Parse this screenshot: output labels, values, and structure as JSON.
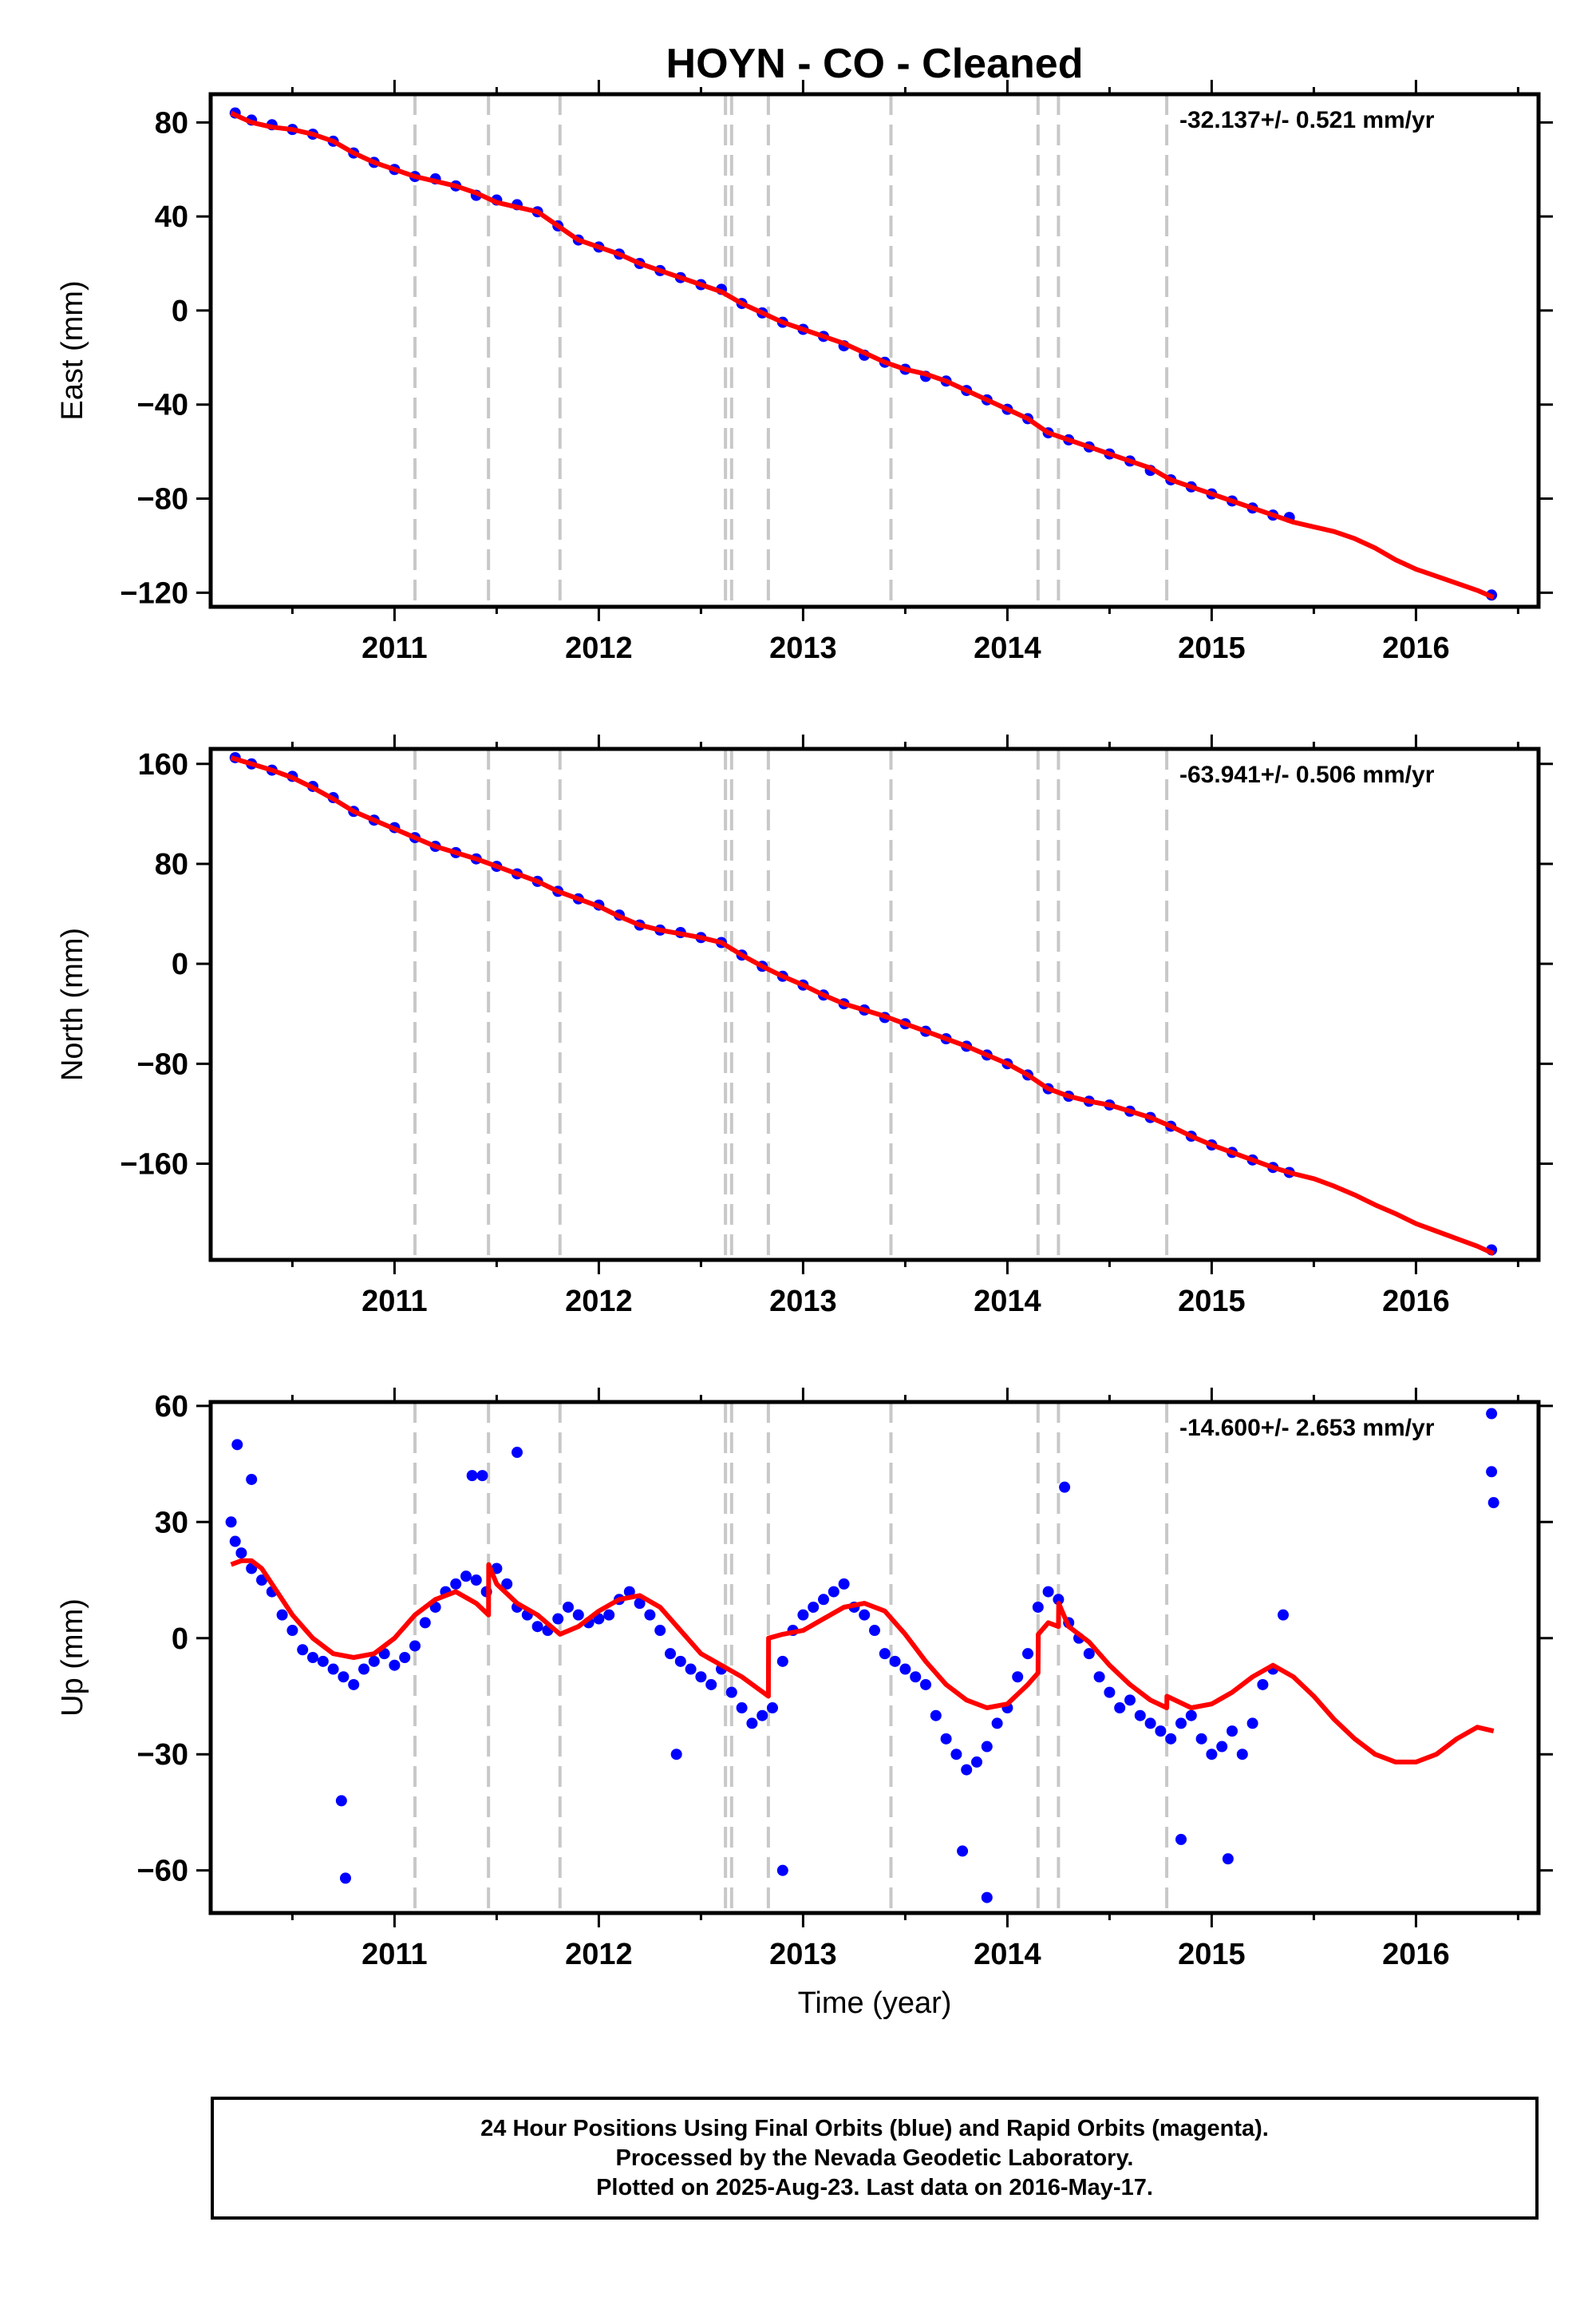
{
  "title": "HOYN  - CO - Cleaned",
  "xlabel": "Time (year)",
  "colors": {
    "final_orbits": "#0000ff",
    "model": "#ff0000",
    "steps": "#c8c8c8",
    "axes": "#000000"
  },
  "chart_data": [
    {
      "type": "scatter",
      "ylabel": "East (mm)",
      "rate_label": "-32.137+/- 0.521 mm/yr",
      "xlim": [
        2010.1,
        2016.6
      ],
      "ylim": [
        -126,
        92
      ],
      "yticks": [
        80,
        40,
        0,
        -40,
        -80,
        -120
      ],
      "yticklabels": [
        "80",
        "40",
        "0",
        "−40",
        "−80",
        "−120"
      ],
      "xticks": [
        2011,
        2012,
        2013,
        2014,
        2015,
        2016
      ],
      "xticklabels": [
        "2011",
        "2012",
        "2013",
        "2014",
        "2015",
        "2016"
      ],
      "steps": [
        2011.1,
        2011.46,
        2011.81,
        2012.62,
        2012.65,
        2012.83,
        2013.43,
        2014.15,
        2014.25,
        2014.78
      ],
      "series": [
        {
          "kind": "points",
          "color": "#0000ff",
          "x": [
            2010.22,
            2010.3,
            2010.4,
            2010.5,
            2010.6,
            2010.7,
            2010.8,
            2010.9,
            2011.0,
            2011.1,
            2011.2,
            2011.3,
            2011.4,
            2011.5,
            2011.6,
            2011.7,
            2011.8,
            2011.9,
            2012.0,
            2012.1,
            2012.2,
            2012.3,
            2012.4,
            2012.5,
            2012.6,
            2012.7,
            2012.8,
            2012.9,
            2013.0,
            2013.1,
            2013.2,
            2013.3,
            2013.4,
            2013.5,
            2013.6,
            2013.7,
            2013.8,
            2013.9,
            2014.0,
            2014.1,
            2014.2,
            2014.3,
            2014.4,
            2014.5,
            2014.6,
            2014.7,
            2014.8,
            2014.9,
            2015.0,
            2015.1,
            2015.2,
            2015.3,
            2015.38,
            2016.37
          ],
          "y": [
            84,
            81,
            79,
            77,
            75,
            72,
            67,
            63,
            60,
            57,
            56,
            53,
            49,
            47,
            45,
            42,
            36,
            30,
            27,
            24,
            20,
            17,
            14,
            11,
            9,
            3,
            -1,
            -5,
            -8,
            -11,
            -15,
            -19,
            -22,
            -25,
            -28,
            -30,
            -34,
            -38,
            -42,
            -46,
            -52,
            -55,
            -58,
            -61,
            -64,
            -68,
            -72,
            -75,
            -78,
            -81,
            -84,
            -87,
            -88,
            -121
          ]
        },
        {
          "kind": "line",
          "color": "#ff0000",
          "x": [
            2010.2,
            2010.3,
            2010.4,
            2010.5,
            2010.6,
            2010.7,
            2010.8,
            2010.9,
            2011.0,
            2011.1,
            2011.2,
            2011.3,
            2011.4,
            2011.5,
            2011.6,
            2011.7,
            2011.8,
            2011.9,
            2012.0,
            2012.1,
            2012.2,
            2012.3,
            2012.4,
            2012.5,
            2012.6,
            2012.7,
            2012.8,
            2012.9,
            2013.0,
            2013.1,
            2013.2,
            2013.3,
            2013.4,
            2013.5,
            2013.6,
            2013.7,
            2013.8,
            2013.9,
            2014.0,
            2014.1,
            2014.2,
            2014.3,
            2014.4,
            2014.5,
            2014.6,
            2014.7,
            2014.8,
            2014.9,
            2015.0,
            2015.1,
            2015.2,
            2015.3,
            2015.4,
            2015.5,
            2015.6,
            2015.7,
            2015.8,
            2015.9,
            2016.0,
            2016.1,
            2016.2,
            2016.3,
            2016.38
          ],
          "y": [
            84,
            80,
            78,
            77,
            75,
            72,
            67,
            63,
            60,
            57,
            55,
            53,
            50,
            46,
            44,
            42,
            36,
            30,
            27,
            24,
            20,
            17,
            14,
            11,
            8,
            3,
            -1,
            -5,
            -8,
            -11,
            -14,
            -18,
            -22,
            -25,
            -27,
            -30,
            -34,
            -38,
            -42,
            -46,
            -52,
            -55,
            -58,
            -61,
            -64,
            -67,
            -72,
            -75,
            -78,
            -81,
            -84,
            -87,
            -90,
            -92,
            -94,
            -97,
            -101,
            -106,
            -110,
            -113,
            -116,
            -119,
            -122
          ]
        }
      ]
    },
    {
      "type": "scatter",
      "ylabel": "North (mm)",
      "rate_label": "-63.941+/- 0.506 mm/yr",
      "xlim": [
        2010.1,
        2016.6
      ],
      "ylim": [
        -237,
        172
      ],
      "yticks": [
        160,
        80,
        0,
        -80,
        -160
      ],
      "yticklabels": [
        "160",
        "80",
        "0",
        "−80",
        "−160"
      ],
      "xticks": [
        2011,
        2012,
        2013,
        2014,
        2015,
        2016
      ],
      "xticklabels": [
        "2011",
        "2012",
        "2013",
        "2014",
        "2015",
        "2016"
      ],
      "steps": [
        2011.1,
        2011.46,
        2011.81,
        2012.62,
        2012.65,
        2012.83,
        2013.43,
        2014.15,
        2014.25,
        2014.78
      ],
      "series": [
        {
          "kind": "points",
          "color": "#0000ff",
          "x": [
            2010.22,
            2010.3,
            2010.4,
            2010.5,
            2010.6,
            2010.7,
            2010.8,
            2010.9,
            2011.0,
            2011.1,
            2011.2,
            2011.3,
            2011.4,
            2011.5,
            2011.6,
            2011.7,
            2011.8,
            2011.9,
            2012.0,
            2012.1,
            2012.2,
            2012.3,
            2012.4,
            2012.5,
            2012.6,
            2012.7,
            2012.8,
            2012.9,
            2013.0,
            2013.1,
            2013.2,
            2013.3,
            2013.4,
            2013.5,
            2013.6,
            2013.7,
            2013.8,
            2013.9,
            2014.0,
            2014.1,
            2014.2,
            2014.3,
            2014.4,
            2014.5,
            2014.6,
            2014.7,
            2014.8,
            2014.9,
            2015.0,
            2015.1,
            2015.2,
            2015.3,
            2015.38,
            2016.37
          ],
          "y": [
            165,
            160,
            155,
            150,
            142,
            133,
            122,
            115,
            109,
            101,
            94,
            89,
            84,
            78,
            72,
            66,
            58,
            52,
            47,
            39,
            31,
            27,
            25,
            21,
            17,
            7,
            -2,
            -10,
            -17,
            -25,
            -32,
            -37,
            -43,
            -48,
            -54,
            -60,
            -66,
            -73,
            -80,
            -89,
            -100,
            -106,
            -110,
            -113,
            -118,
            -123,
            -130,
            -138,
            -145,
            -151,
            -157,
            -163,
            -167,
            -229
          ]
        },
        {
          "kind": "line",
          "color": "#ff0000",
          "x": [
            2010.2,
            2010.3,
            2010.4,
            2010.5,
            2010.6,
            2010.7,
            2010.8,
            2010.9,
            2011.0,
            2011.1,
            2011.2,
            2011.3,
            2011.4,
            2011.5,
            2011.6,
            2011.7,
            2011.8,
            2011.9,
            2012.0,
            2012.1,
            2012.2,
            2012.3,
            2012.4,
            2012.5,
            2012.6,
            2012.7,
            2012.8,
            2012.9,
            2013.0,
            2013.1,
            2013.2,
            2013.3,
            2013.4,
            2013.5,
            2013.6,
            2013.7,
            2013.8,
            2013.9,
            2014.0,
            2014.1,
            2014.2,
            2014.3,
            2014.4,
            2014.5,
            2014.6,
            2014.7,
            2014.8,
            2014.9,
            2015.0,
            2015.1,
            2015.2,
            2015.3,
            2015.4,
            2015.5,
            2015.6,
            2015.7,
            2015.8,
            2015.9,
            2016.0,
            2016.1,
            2016.2,
            2016.3,
            2016.38
          ],
          "y": [
            165,
            160,
            155,
            149,
            141,
            132,
            122,
            115,
            108,
            101,
            94,
            89,
            84,
            78,
            72,
            66,
            58,
            52,
            46,
            38,
            31,
            27,
            24,
            21,
            17,
            7,
            -2,
            -10,
            -17,
            -25,
            -32,
            -37,
            -42,
            -48,
            -54,
            -60,
            -66,
            -73,
            -80,
            -89,
            -100,
            -106,
            -110,
            -113,
            -118,
            -123,
            -130,
            -138,
            -145,
            -151,
            -157,
            -163,
            -168,
            -172,
            -178,
            -185,
            -193,
            -200,
            -208,
            -214,
            -220,
            -226,
            -232
          ]
        }
      ]
    },
    {
      "type": "scatter",
      "ylabel": "Up (mm)",
      "rate_label": "-14.600+/- 2.653 mm/yr",
      "xlim": [
        2010.1,
        2016.6
      ],
      "ylim": [
        -71,
        61
      ],
      "yticks": [
        60,
        30,
        0,
        -30,
        -60
      ],
      "yticklabels": [
        "60",
        "30",
        "0",
        "−30",
        "−60"
      ],
      "xticks": [
        2011,
        2012,
        2013,
        2014,
        2015,
        2016
      ],
      "xticklabels": [
        "2011",
        "2012",
        "2013",
        "2014",
        "2015",
        "2016"
      ],
      "steps": [
        2011.1,
        2011.46,
        2011.81,
        2012.62,
        2012.65,
        2012.83,
        2013.43,
        2014.15,
        2014.25,
        2014.78
      ],
      "series": [
        {
          "kind": "points",
          "color": "#0000ff",
          "x": [
            2010.2,
            2010.22,
            2010.25,
            2010.3,
            2010.35,
            2010.4,
            2010.45,
            2010.5,
            2010.55,
            2010.6,
            2010.65,
            2010.7,
            2010.75,
            2010.8,
            2010.85,
            2010.9,
            2010.95,
            2011.0,
            2011.05,
            2011.1,
            2011.15,
            2011.2,
            2011.25,
            2011.3,
            2011.35,
            2011.4,
            2011.45,
            2011.5,
            2011.55,
            2011.6,
            2011.65,
            2011.7,
            2011.75,
            2011.8,
            2011.85,
            2011.9,
            2011.95,
            2012.0,
            2012.05,
            2012.1,
            2012.15,
            2012.2,
            2012.25,
            2012.3,
            2012.35,
            2012.4,
            2012.45,
            2012.5,
            2012.55,
            2012.6,
            2012.65,
            2012.7,
            2012.75,
            2012.8,
            2012.85,
            2012.9,
            2012.95,
            2013.0,
            2013.05,
            2013.1,
            2013.15,
            2013.2,
            2013.25,
            2013.3,
            2013.35,
            2013.4,
            2013.45,
            2013.5,
            2013.55,
            2013.6,
            2013.65,
            2013.7,
            2013.75,
            2013.8,
            2013.85,
            2013.9,
            2013.95,
            2014.0,
            2014.05,
            2014.1,
            2014.15,
            2014.2,
            2014.25,
            2014.3,
            2014.35,
            2014.4,
            2014.45,
            2014.5,
            2014.55,
            2014.6,
            2014.65,
            2014.7,
            2014.75,
            2014.8,
            2014.85,
            2014.9,
            2014.95,
            2015.0,
            2015.05,
            2015.1,
            2015.15,
            2015.2,
            2015.25,
            2015.3,
            2015.35,
            2010.74,
            2010.76,
            2011.6,
            2012.9,
            2013.9,
            2016.37,
            2016.37,
            2016.38,
            2010.23,
            2010.3,
            2011.38,
            2011.43,
            2014.28,
            2015.08,
            2014.85,
            2013.78,
            2012.38
          ],
          "y": [
            30,
            25,
            22,
            18,
            15,
            12,
            6,
            2,
            -3,
            -5,
            -6,
            -8,
            -10,
            -12,
            -8,
            -6,
            -4,
            -7,
            -5,
            -2,
            4,
            8,
            12,
            14,
            16,
            15,
            12,
            18,
            14,
            8,
            6,
            3,
            2,
            5,
            8,
            6,
            4,
            5,
            6,
            10,
            12,
            9,
            6,
            2,
            -4,
            -6,
            -8,
            -10,
            -12,
            -8,
            -14,
            -18,
            -22,
            -20,
            -18,
            -6,
            2,
            6,
            8,
            10,
            12,
            14,
            8,
            6,
            2,
            -4,
            -6,
            -8,
            -10,
            -12,
            -20,
            -26,
            -30,
            -34,
            -32,
            -28,
            -22,
            -18,
            -10,
            -4,
            8,
            12,
            10,
            4,
            0,
            -4,
            -10,
            -14,
            -18,
            -16,
            -20,
            -22,
            -24,
            -26,
            -22,
            -20,
            -26,
            -30,
            -28,
            -24,
            -30,
            -22,
            -12,
            -8,
            6,
            -42,
            -62,
            48,
            -60,
            -67,
            58,
            43,
            35,
            50,
            41,
            42,
            42,
            39,
            -57,
            -52,
            -55,
            -30
          ]
        },
        {
          "kind": "line",
          "color": "#ff0000",
          "x": [
            2010.2,
            2010.25,
            2010.3,
            2010.35,
            2010.4,
            2010.5,
            2010.6,
            2010.7,
            2010.8,
            2010.9,
            2011.0,
            2011.1,
            2011.2,
            2011.3,
            2011.4,
            2011.46,
            2011.461,
            2011.5,
            2011.6,
            2011.7,
            2011.81,
            2011.9,
            2012.0,
            2012.1,
            2012.2,
            2012.3,
            2012.4,
            2012.5,
            2012.6,
            2012.7,
            2012.83,
            2012.831,
            2012.9,
            2013.0,
            2013.1,
            2013.2,
            2013.3,
            2013.4,
            2013.5,
            2013.6,
            2013.7,
            2013.8,
            2013.9,
            2014.0,
            2014.1,
            2014.15,
            2014.151,
            2014.2,
            2014.25,
            2014.251,
            2014.3,
            2014.4,
            2014.5,
            2014.6,
            2014.7,
            2014.78,
            2014.781,
            2014.9,
            2015.0,
            2015.1,
            2015.2,
            2015.3,
            2015.4,
            2015.5,
            2015.6,
            2015.7,
            2015.8,
            2015.9,
            2016.0,
            2016.1,
            2016.2,
            2016.3,
            2016.38
          ],
          "y": [
            19,
            20,
            20,
            18,
            14,
            6,
            0,
            -4,
            -5,
            -4,
            0,
            6,
            10,
            12,
            9,
            6,
            19,
            14,
            9,
            6,
            1,
            3,
            7,
            10,
            11,
            8,
            2,
            -4,
            -7,
            -10,
            -15,
            0,
            1,
            2,
            5,
            8,
            9,
            7,
            1,
            -6,
            -12,
            -16,
            -18,
            -17,
            -12,
            -9,
            1,
            4,
            3,
            9,
            3,
            -1,
            -7,
            -12,
            -16,
            -18,
            -15,
            -18,
            -17,
            -14,
            -10,
            -7,
            -10,
            -15,
            -21,
            -26,
            -30,
            -32,
            -32,
            -30,
            -26,
            -23,
            -24
          ]
        }
      ]
    }
  ],
  "footer": {
    "line1": "24 Hour Positions Using Final Orbits (blue) and Rapid Orbits (magenta).",
    "line2": "Processed by the Nevada Geodetic Laboratory.",
    "line3": "Plotted on 2025-Aug-23. Last data on 2016-May-17."
  }
}
